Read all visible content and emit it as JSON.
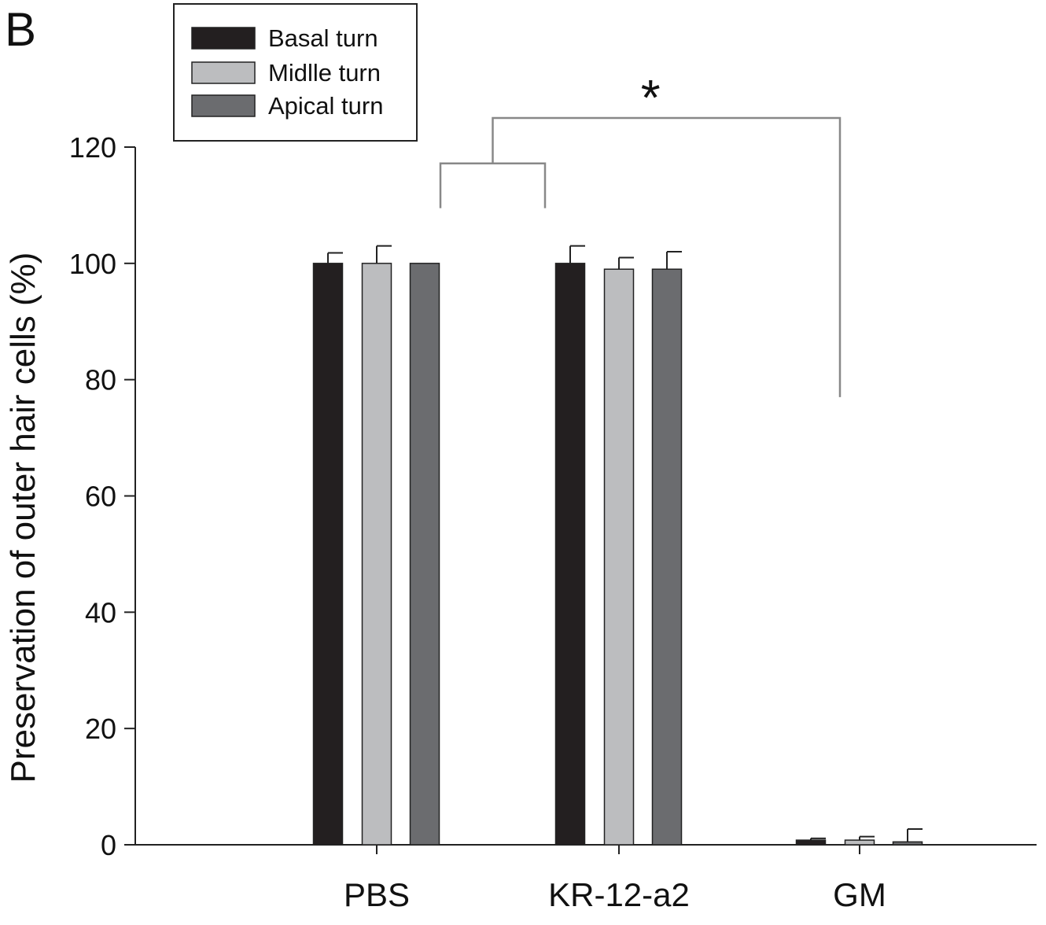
{
  "panel_label": "B",
  "chart_data": {
    "type": "bar",
    "title": "",
    "xlabel": "",
    "ylabel": "Preservation of outer hair cells (%)",
    "ylim": [
      0,
      120
    ],
    "yticks": [
      0,
      20,
      40,
      60,
      80,
      100,
      120
    ],
    "categories": [
      "PBS",
      "KR-12-a2",
      "GM"
    ],
    "series": [
      {
        "name": "Basal turn",
        "color": "#231f20",
        "values": [
          100,
          100,
          0.8
        ],
        "errors": [
          1.8,
          3,
          0.3
        ]
      },
      {
        "name": "Midlle turn",
        "color": "#bcbdbf",
        "values": [
          100,
          99,
          0.8
        ],
        "errors": [
          3,
          2,
          0.6
        ]
      },
      {
        "name": "Apical turn",
        "color": "#6b6c6f",
        "values": [
          100,
          99,
          0.5
        ],
        "errors": [
          0,
          3,
          2.2
        ]
      }
    ],
    "legend_position": "top-left",
    "grid": false,
    "annotations": [
      {
        "text": "*",
        "between": [
          [
            "PBS",
            "KR-12-a2"
          ],
          [
            "GM"
          ]
        ]
      }
    ]
  }
}
